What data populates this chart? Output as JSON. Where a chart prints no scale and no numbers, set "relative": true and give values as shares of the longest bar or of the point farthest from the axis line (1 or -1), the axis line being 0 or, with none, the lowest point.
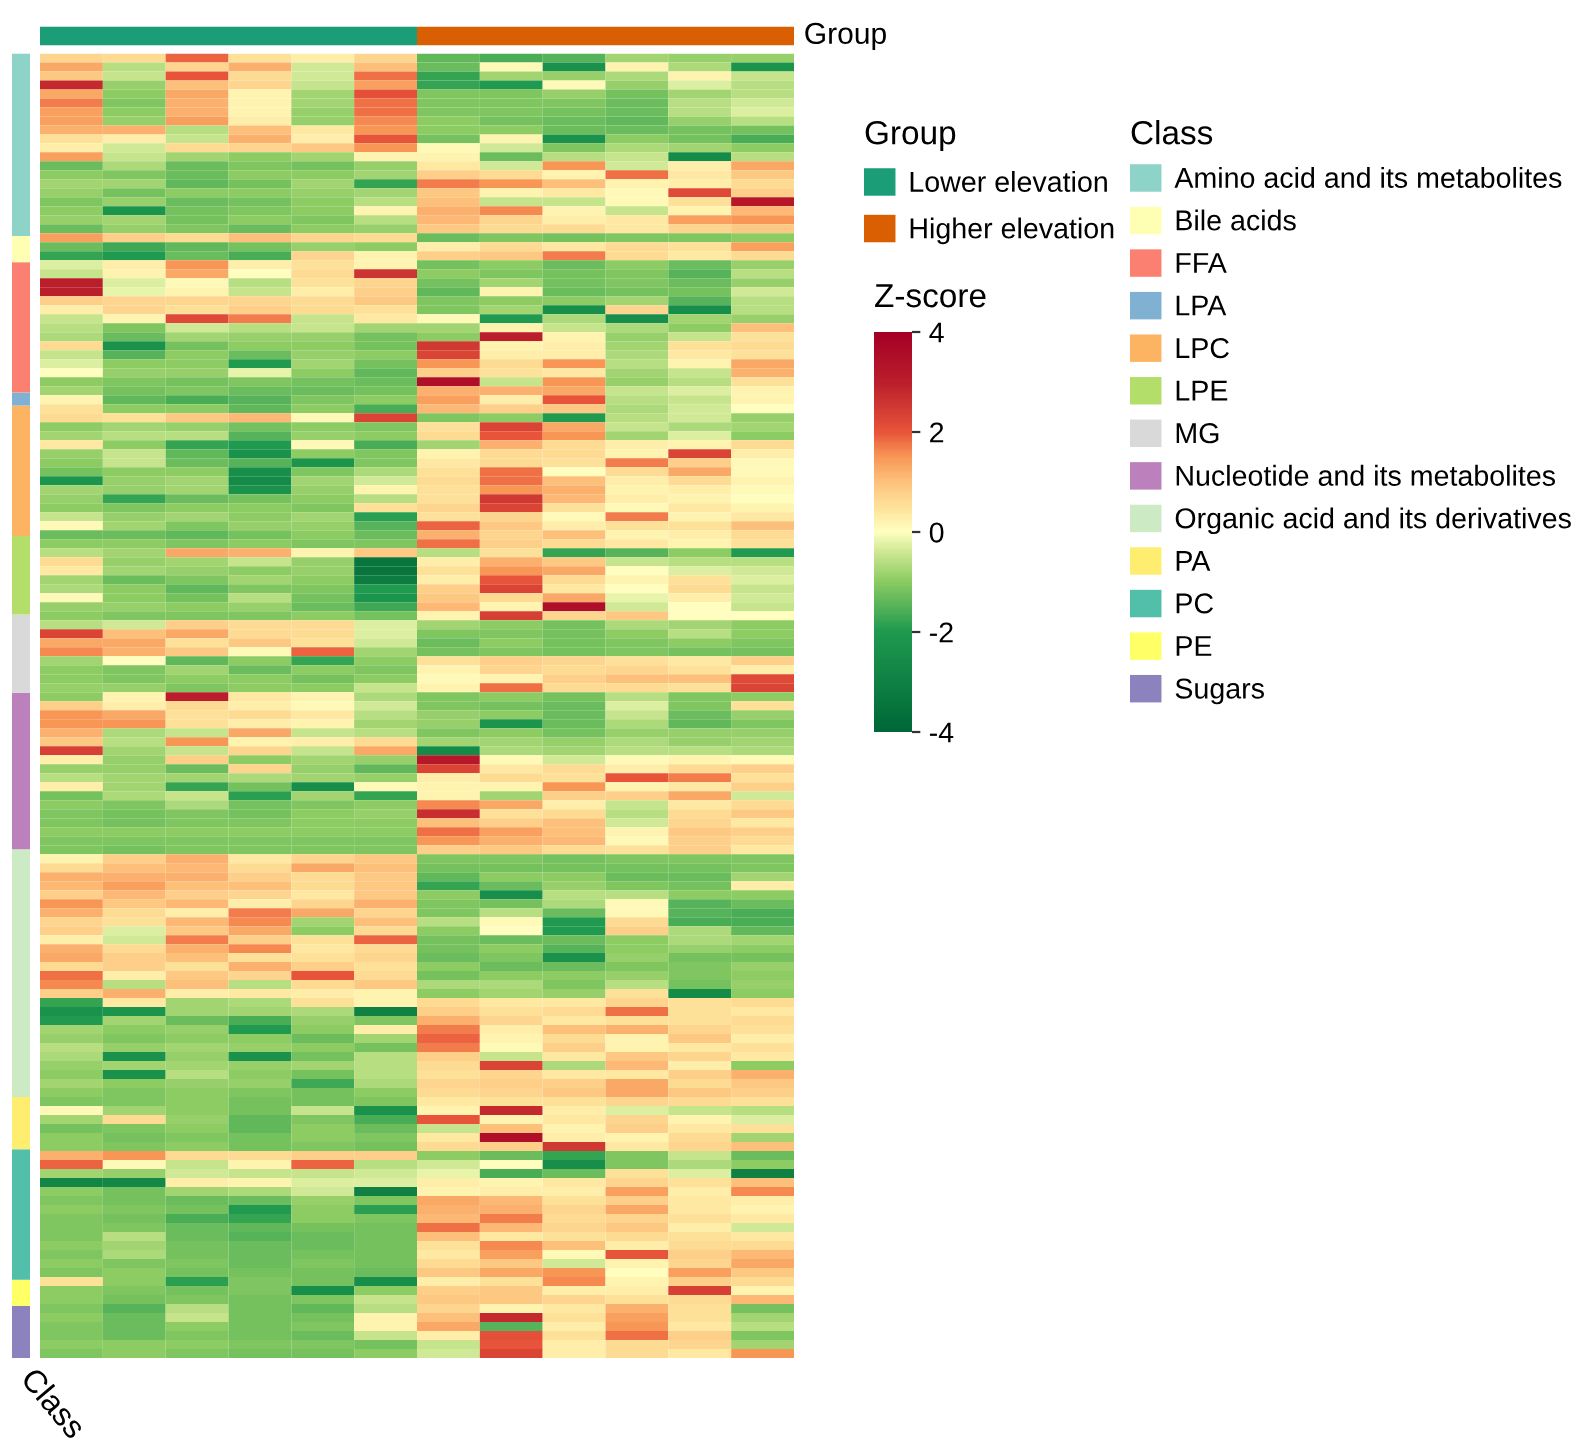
{
  "chart_data": [
    {
      "type": "bar",
      "orientation": "horizontal",
      "stacked": true,
      "relative": true,
      "categories": [
        null
      ],
      "series": [
        {
          "name": "Lower elevation",
          "color": "#1b9e77",
          "values": [
            0.5
          ]
        },
        {
          "name": "Higher elevation",
          "color": "#d95f02",
          "values": [
            0.5
          ]
        }
      ],
      "legend": "right",
      "legend_title": "Group",
      "annotations": [
        "Group"
      ]
    },
    {
      "type": "bar",
      "stacked": true,
      "relative": true,
      "categories": [
        null
      ],
      "series": [
        {
          "name": "Sugars",
          "color": "#8c82be",
          "values": [
            0.04
          ]
        },
        {
          "name": "PE",
          "color": "#ffff66",
          "values": [
            0.02
          ]
        },
        {
          "name": "PC",
          "color": "#52bfab",
          "values": [
            0.1
          ]
        },
        {
          "name": "PA",
          "color": "#ffed6f",
          "values": [
            0.04
          ]
        },
        {
          "name": "Organic acid and its derivatives",
          "color": "#ccebc5",
          "values": [
            0.19
          ]
        },
        {
          "name": "Nucleotide and its metabolites",
          "color": "#bc80bd",
          "values": [
            0.12
          ]
        },
        {
          "name": "MG",
          "color": "#d9d9d9",
          "values": [
            0.06
          ]
        },
        {
          "name": "LPE",
          "color": "#b3de69",
          "values": [
            0.06
          ]
        },
        {
          "name": "LPC",
          "color": "#fdb462",
          "values": [
            0.1
          ]
        },
        {
          "name": "LPA",
          "color": "#80b1d3",
          "values": [
            0.01
          ]
        },
        {
          "name": "FFA",
          "color": "#fb8072",
          "values": [
            0.1
          ]
        },
        {
          "name": "Bile acids",
          "color": "#ffffb3",
          "values": [
            0.02
          ]
        },
        {
          "name": "Amino acid and its metabolites",
          "color": "#8dd3c7",
          "values": [
            0.14
          ]
        }
      ],
      "legend": "right",
      "legend_title": "Class",
      "annotations": [
        "Class"
      ]
    },
    {
      "type": "heatmap",
      "categories": [
        null,
        null,
        null,
        null,
        null,
        null,
        null,
        null,
        null,
        null,
        null,
        null
      ],
      "y_categories": [
        null,
        null,
        null,
        null,
        null,
        null,
        null,
        null,
        null,
        null,
        null,
        null,
        null,
        null,
        null,
        null,
        null,
        null,
        null,
        null,
        null,
        null,
        null,
        null,
        null,
        null,
        null,
        null,
        null,
        null,
        null,
        null,
        null,
        null,
        null,
        null,
        null,
        null,
        null,
        null,
        null,
        null,
        null,
        null,
        null,
        null,
        null,
        null,
        null,
        null,
        null,
        null,
        null,
        null,
        null,
        null,
        null,
        null,
        null,
        null,
        null,
        null,
        null,
        null,
        null,
        null,
        null,
        null,
        null,
        null,
        null,
        null,
        null,
        null,
        null,
        null,
        null,
        null,
        null,
        null,
        null,
        null,
        null,
        null,
        null,
        null,
        null,
        null,
        null,
        null,
        null,
        null,
        null,
        null,
        null,
        null,
        null,
        null,
        null,
        null,
        null,
        null,
        null,
        null,
        null,
        null,
        null,
        null,
        null,
        null,
        null,
        null,
        null,
        null,
        null,
        null,
        null,
        null,
        null,
        null,
        null,
        null,
        null,
        null,
        null,
        null,
        null,
        null,
        null,
        null,
        null,
        null,
        null,
        null,
        null,
        null,
        null,
        null,
        null,
        null,
        null,
        null,
        null,
        null,
        null
      ],
      "cells": [
        [
          0.7,
          0.6,
          1.9,
          0.5,
          0.3,
          0.7,
          -1.4,
          -1.6,
          -1.5,
          -0.8,
          -0.9,
          -0.9
        ],
        [
          1.3,
          -0.6,
          0.7,
          1.2,
          -0.4,
          1.0,
          -1.3,
          0.1,
          -2.3,
          0.2,
          -0.7,
          -2.2
        ],
        [
          0.9,
          -0.5,
          2.0,
          0.6,
          -0.4,
          1.8,
          -1.8,
          -0.8,
          -0.9,
          -0.7,
          0.2,
          -0.5
        ],
        [
          2.8,
          -0.9,
          1.0,
          0.7,
          -0.5,
          1.4,
          -1.8,
          -2.0,
          0.1,
          -0.9,
          -0.3,
          -0.6
        ],
        [
          1.3,
          -1.0,
          1.3,
          0.2,
          -0.8,
          2.1,
          -1.1,
          -1.1,
          -0.9,
          -1.2,
          -0.8,
          -0.6
        ],
        [
          1.7,
          -1.1,
          1.2,
          0.2,
          -0.8,
          1.8,
          -1.1,
          -1.1,
          -1.1,
          -1.3,
          -0.6,
          -0.4
        ],
        [
          1.4,
          -1.0,
          1.2,
          0.2,
          -0.9,
          1.8,
          -1.1,
          -1.1,
          -1.2,
          -1.3,
          -0.6,
          -0.3
        ],
        [
          1.4,
          -0.9,
          1.4,
          0.3,
          -0.9,
          1.6,
          -1.0,
          -1.2,
          -1.3,
          -1.4,
          -0.9,
          -0.6
        ],
        [
          1.2,
          1.2,
          -0.6,
          1.0,
          0.4,
          1.5,
          -1.0,
          -1.0,
          -1.3,
          -1.3,
          -1.2,
          -1.2
        ],
        [
          0.5,
          0.3,
          -0.5,
          1.2,
          0.3,
          2.0,
          -1.2,
          0.2,
          -2.3,
          -1.0,
          -1.2,
          -1.6
        ],
        [
          0.3,
          -0.4,
          0.6,
          0.7,
          0.9,
          1.5,
          0.1,
          -0.4,
          -1.1,
          -0.7,
          -0.8,
          -1.0
        ],
        [
          1.4,
          -0.5,
          -0.8,
          -1.0,
          -0.8,
          0.2,
          0.2,
          -1.3,
          -0.6,
          -0.5,
          -2.6,
          -0.6
        ],
        [
          -1.3,
          -0.7,
          -1.3,
          -1.1,
          -1.2,
          -0.9,
          0.4,
          -0.4,
          1.5,
          -0.4,
          0.3,
          1.3
        ],
        [
          -1.0,
          -1.1,
          -1.3,
          -1.0,
          -1.0,
          -0.8,
          0.8,
          0.6,
          0.2,
          1.8,
          0.4,
          0.9
        ],
        [
          -0.8,
          -0.8,
          -1.4,
          -1.2,
          -0.8,
          -1.8,
          1.7,
          1.5,
          1.0,
          0.2,
          0.3,
          0.6
        ],
        [
          -0.9,
          -1.2,
          -1.0,
          -1.0,
          -0.9,
          -0.8,
          0.9,
          0.2,
          0.4,
          0.1,
          2.2,
          0.8
        ],
        [
          -1.1,
          -0.9,
          -1.3,
          -1.2,
          -1.0,
          -0.6,
          1.0,
          -0.5,
          -0.5,
          0.1,
          0.5,
          3.2
        ],
        [
          -1.0,
          -2.2,
          -1.2,
          -1.1,
          -1.0,
          0.2,
          1.2,
          1.6,
          0.2,
          -0.5,
          0.2,
          1.1
        ],
        [
          -0.9,
          -0.8,
          -1.2,
          -1.0,
          -1.1,
          -0.6,
          1.1,
          0.7,
          0.3,
          0.4,
          1.4,
          1.5
        ],
        [
          -1.3,
          -0.9,
          -1.1,
          -1.3,
          -1.0,
          -0.9,
          0.9,
          0.6,
          0.6,
          0.4,
          0.7,
          0.9
        ],
        [
          1.4,
          0.8,
          0.6,
          1.0,
          0.7,
          0.6,
          -1.3,
          -1.1,
          -1.2,
          -1.1,
          -1.1,
          -1.0
        ],
        [
          -1.3,
          -1.7,
          -1.4,
          -1.2,
          -0.9,
          -1.0,
          0.3,
          0.6,
          0.4,
          0.6,
          0.5,
          1.4
        ],
        [
          -1.8,
          -2.0,
          -1.3,
          -1.6,
          0.7,
          0.2,
          0.8,
          0.9,
          1.7,
          0.6,
          0.4,
          0.6
        ],
        [
          -0.3,
          0.3,
          1.5,
          0.3,
          0.5,
          0.2,
          -1.2,
          -1.0,
          -1.3,
          -1.0,
          -1.3,
          -0.9
        ],
        [
          -0.5,
          0.2,
          1.3,
          0.0,
          0.6,
          2.6,
          -1.0,
          -1.1,
          -1.2,
          -1.1,
          -1.5,
          -0.6
        ],
        [
          3.0,
          -0.3,
          0.1,
          -0.6,
          0.5,
          0.7,
          -1.2,
          -0.8,
          -1.2,
          -1.1,
          -1.3,
          -0.9
        ],
        [
          3.0,
          -0.2,
          0.2,
          -0.5,
          0.3,
          0.8,
          -1.4,
          0.2,
          -1.3,
          -1.2,
          -1.2,
          -0.4
        ],
        [
          0.8,
          0.7,
          0.7,
          0.7,
          0.6,
          0.9,
          -1.1,
          -1.0,
          -1.0,
          -0.8,
          -1.5,
          -0.6
        ],
        [
          0.3,
          0.7,
          0.5,
          0.8,
          0.6,
          0.5,
          -1.1,
          -0.8,
          -2.5,
          0.7,
          -2.5,
          -0.6
        ],
        [
          -0.5,
          0.2,
          2.2,
          1.7,
          -0.5,
          0.4,
          0.1,
          -2.0,
          -0.7,
          -2.5,
          -0.8,
          -0.9
        ],
        [
          -0.6,
          -1.1,
          -0.4,
          -0.6,
          -0.5,
          -0.8,
          -0.8,
          0.2,
          -0.5,
          -0.7,
          -1.0,
          1.0
        ],
        [
          -0.7,
          -1.3,
          -0.8,
          -0.9,
          -0.9,
          -1.2,
          -1.0,
          3.0,
          0.2,
          -0.9,
          -0.5,
          0.5
        ],
        [
          0.6,
          -2.3,
          -1.2,
          -1.0,
          -1.0,
          -1.2,
          2.5,
          0.2,
          0.3,
          -0.8,
          0.5,
          0.6
        ],
        [
          -0.5,
          -1.5,
          -1.0,
          -1.3,
          -0.9,
          -1.0,
          2.3,
          0.3,
          0.3,
          -0.7,
          0.4,
          0.5
        ],
        [
          -0.3,
          -1.0,
          -1.0,
          -2.0,
          -0.8,
          -1.2,
          1.5,
          0.6,
          1.5,
          -0.6,
          0.2,
          1.3
        ],
        [
          0.0,
          -0.9,
          -0.9,
          -0.2,
          -1.0,
          -1.4,
          0.8,
          0.5,
          0.4,
          -0.8,
          -0.5,
          1.2
        ],
        [
          -1.0,
          -1.1,
          -1.2,
          -1.1,
          -1.2,
          -1.3,
          3.5,
          -0.5,
          1.5,
          -0.9,
          -0.6,
          0.5
        ],
        [
          -0.8,
          -1.2,
          -1.1,
          -1.3,
          -1.3,
          -1.2,
          1.2,
          1.2,
          1.3,
          -0.5,
          -0.3,
          0.2
        ],
        [
          0.2,
          -1.4,
          -1.6,
          -1.5,
          -1.1,
          -1.0,
          1.4,
          0.3,
          2.0,
          -0.6,
          -0.5,
          0.2
        ],
        [
          0.5,
          -1.0,
          -1.0,
          -1.4,
          -1.0,
          -1.6,
          1.1,
          0.8,
          0.9,
          -0.7,
          -0.4,
          0.0
        ],
        [
          0.6,
          0.5,
          0.9,
          1.1,
          0.1,
          2.3,
          -1.1,
          -1.0,
          -2.0,
          -0.6,
          -0.4,
          -0.9
        ],
        [
          -1.0,
          -0.8,
          -0.9,
          -1.2,
          -1.0,
          -1.1,
          0.5,
          2.3,
          1.3,
          -0.5,
          -0.7,
          -0.8
        ],
        [
          -0.8,
          -0.6,
          -0.6,
          -1.5,
          -0.9,
          -1.0,
          0.6,
          2.0,
          1.5,
          -0.8,
          -0.3,
          -1.0
        ],
        [
          0.4,
          -1.0,
          -1.8,
          -2.0,
          0.1,
          -1.6,
          -0.8,
          1.2,
          0.6,
          0.3,
          0.2,
          0.6
        ],
        [
          -0.9,
          -0.5,
          -1.4,
          -2.3,
          -1.0,
          -1.1,
          0.2,
          0.6,
          0.6,
          0.2,
          2.3,
          0.3
        ],
        [
          -1.0,
          -0.5,
          -1.3,
          -1.5,
          -2.2,
          -1.1,
          0.4,
          0.6,
          0.5,
          1.7,
          0.8,
          0.1
        ],
        [
          -1.2,
          -1.0,
          -1.0,
          -2.5,
          -1.1,
          -0.7,
          0.5,
          1.8,
          0.0,
          0.6,
          1.3,
          0.1
        ],
        [
          -2.2,
          -0.9,
          -0.8,
          -2.6,
          -0.8,
          -0.4,
          0.6,
          1.8,
          1.0,
          0.3,
          0.6,
          0.2
        ],
        [
          -0.8,
          -0.9,
          -0.8,
          -2.3,
          -0.9,
          0.2,
          0.5,
          1.5,
          1.2,
          0.2,
          0.3,
          0.1
        ],
        [
          -0.9,
          -1.8,
          -1.3,
          -1.2,
          -1.0,
          -0.6,
          0.5,
          2.5,
          1.1,
          0.3,
          0.2,
          0.0
        ],
        [
          -1.0,
          -1.1,
          -1.0,
          -1.0,
          -1.1,
          0.5,
          0.7,
          2.3,
          0.5,
          0.1,
          0.4,
          0.2
        ],
        [
          -0.5,
          -0.9,
          -0.8,
          -1.0,
          -0.8,
          -1.9,
          0.5,
          0.7,
          0.1,
          1.7,
          0.2,
          0.4
        ],
        [
          0.1,
          -0.8,
          -1.1,
          -0.9,
          -0.9,
          -1.5,
          1.9,
          0.9,
          0.3,
          0.5,
          0.5,
          1.0
        ],
        [
          -1.3,
          -1.3,
          -1.4,
          -1.2,
          -1.0,
          -1.3,
          1.2,
          0.7,
          1.0,
          0.2,
          0.3,
          0.6
        ],
        [
          -1.0,
          -1.0,
          -1.1,
          -1.0,
          -1.1,
          -1.1,
          1.8,
          0.8,
          0.6,
          0.4,
          0.2,
          0.5
        ],
        [
          -0.6,
          -0.8,
          1.3,
          1.2,
          0.2,
          0.9,
          -0.6,
          0.5,
          -1.8,
          -1.5,
          -1.0,
          -2.0
        ],
        [
          0.6,
          -0.9,
          -0.8,
          -0.5,
          -0.9,
          -3.5,
          0.3,
          1.2,
          0.9,
          -0.5,
          -0.6,
          -0.6
        ],
        [
          0.4,
          -0.8,
          -0.9,
          -1.0,
          -0.9,
          -3.5,
          0.5,
          1.5,
          1.3,
          0.0,
          -0.3,
          -0.4
        ],
        [
          -0.8,
          -1.3,
          -1.1,
          -0.8,
          -1.0,
          -3.2,
          0.3,
          2.0,
          0.6,
          0.2,
          0.5,
          -0.3
        ],
        [
          -0.7,
          -1.0,
          -1.4,
          -1.1,
          -1.1,
          -2.0,
          0.8,
          2.3,
          0.4,
          0.0,
          0.6,
          -0.5
        ],
        [
          0.1,
          -1.0,
          -1.2,
          -0.6,
          -1.2,
          -2.2,
          0.9,
          0.6,
          1.3,
          -0.2,
          0.3,
          -0.4
        ],
        [
          -0.9,
          -0.9,
          -1.0,
          -0.9,
          -1.3,
          -1.7,
          1.1,
          0.2,
          3.5,
          -0.4,
          0.0,
          -0.5
        ],
        [
          -1.0,
          -1.1,
          -1.1,
          -1.1,
          -1.0,
          -1.2,
          0.2,
          2.4,
          0.7,
          0.9,
          0.0,
          0.0
        ],
        [
          -0.6,
          -0.4,
          0.8,
          0.6,
          0.6,
          -0.3,
          -0.8,
          -1.0,
          -1.2,
          -0.7,
          -0.8,
          -1.0
        ],
        [
          2.3,
          1.0,
          1.3,
          0.6,
          0.6,
          -0.3,
          -1.1,
          -1.1,
          -1.2,
          -1.0,
          -0.6,
          -1.0
        ],
        [
          1.3,
          1.3,
          0.5,
          0.9,
          0.5,
          -0.4,
          -1.3,
          -1.0,
          -1.2,
          -1.1,
          -1.0,
          -1.1
        ],
        [
          1.6,
          1.2,
          0.9,
          0.1,
          1.9,
          -0.8,
          -1.2,
          -1.1,
          -1.2,
          -1.1,
          -1.2,
          -1.2
        ],
        [
          -0.8,
          0.0,
          -1.4,
          -1.0,
          -1.8,
          -1.0,
          0.5,
          0.8,
          0.7,
          0.5,
          0.4,
          0.8
        ],
        [
          -1.0,
          -1.1,
          -0.8,
          -1.3,
          -1.0,
          -1.1,
          0.2,
          0.7,
          0.6,
          0.7,
          0.5,
          0.3
        ],
        [
          -1.0,
          -1.1,
          -1.0,
          -1.0,
          -1.2,
          -1.0,
          0.1,
          0.2,
          0.8,
          1.0,
          1.0,
          2.2
        ],
        [
          -0.9,
          -0.9,
          -1.1,
          -1.0,
          -1.0,
          -0.5,
          0.2,
          1.8,
          0.6,
          0.6,
          0.5,
          2.3
        ],
        [
          -1.0,
          0.2,
          3.0,
          0.4,
          0.2,
          -0.7,
          -1.1,
          -1.0,
          -1.2,
          -0.6,
          -1.1,
          -1.0
        ],
        [
          0.8,
          0.3,
          0.6,
          0.3,
          0.1,
          -0.4,
          -1.1,
          -1.2,
          -1.3,
          -0.3,
          -1.1,
          0.5
        ],
        [
          1.5,
          1.3,
          0.5,
          0.6,
          0.4,
          -0.6,
          -0.9,
          -1.0,
          -1.3,
          -0.5,
          -1.3,
          -0.9
        ],
        [
          1.5,
          1.5,
          0.5,
          0.3,
          0.2,
          -0.8,
          -0.9,
          -2.2,
          -1.3,
          -0.7,
          -1.4,
          -1.1
        ],
        [
          1.2,
          -0.7,
          -0.5,
          1.3,
          -0.5,
          -0.6,
          -1.1,
          -1.0,
          -1.2,
          -0.9,
          -0.9,
          -0.9
        ],
        [
          0.9,
          -0.6,
          1.5,
          0.2,
          0.3,
          0.6,
          -0.8,
          -0.8,
          -0.9,
          -0.7,
          -0.9,
          -0.8
        ],
        [
          2.4,
          -0.8,
          -0.5,
          0.7,
          -0.5,
          1.3,
          -2.6,
          -0.7,
          -0.8,
          -0.6,
          -0.6,
          -0.7
        ],
        [
          0.3,
          -0.9,
          0.8,
          -1.0,
          -0.8,
          -0.9,
          3.2,
          0.1,
          -0.4,
          0.1,
          0.2,
          0.1
        ],
        [
          -0.9,
          -0.9,
          -1.3,
          0.7,
          -0.9,
          -1.4,
          2.3,
          0.4,
          0.6,
          0.3,
          0.6,
          0.8
        ],
        [
          -0.6,
          -0.8,
          -0.8,
          -0.7,
          -0.8,
          -0.9,
          0.3,
          0.6,
          0.5,
          2.0,
          1.7,
          0.5
        ],
        [
          0.3,
          -0.8,
          -1.8,
          -1.2,
          -2.5,
          0.1,
          0.2,
          0.2,
          1.5,
          0.2,
          0.4,
          0.8
        ],
        [
          -1.2,
          -0.7,
          -0.5,
          -1.9,
          -0.8,
          -1.8,
          0.2,
          -0.8,
          0.8,
          0.8,
          1.3,
          -0.4
        ],
        [
          -1.0,
          -1.1,
          -0.7,
          -1.2,
          -1.1,
          -1.0,
          1.6,
          1.3,
          0.3,
          -0.5,
          0.4,
          0.6
        ],
        [
          -1.1,
          -1.2,
          -1.1,
          -1.2,
          -1.0,
          -0.9,
          2.7,
          0.5,
          0.6,
          -0.6,
          0.6,
          0.9
        ],
        [
          -1.1,
          -1.2,
          -1.1,
          -1.1,
          -1.0,
          -1.0,
          1.0,
          0.8,
          1.0,
          -0.4,
          0.7,
          0.4
        ],
        [
          -1.0,
          -1.0,
          -1.0,
          -1.0,
          -1.0,
          -1.0,
          1.8,
          1.4,
          1.0,
          0.2,
          0.9,
          0.8
        ],
        [
          -1.1,
          -1.1,
          -1.1,
          -1.1,
          -1.1,
          -1.1,
          1.5,
          1.2,
          1.1,
          0.1,
          0.8,
          0.6
        ],
        [
          -1.1,
          -1.2,
          -1.1,
          -1.1,
          -1.1,
          -1.1,
          0.8,
          0.9,
          0.6,
          0.5,
          0.8,
          0.4
        ],
        [
          0.2,
          0.8,
          1.2,
          0.4,
          0.7,
          0.9,
          -1.1,
          -1.1,
          -1.2,
          -1.1,
          -1.1,
          -1.1
        ],
        [
          0.6,
          1.0,
          1.1,
          0.6,
          1.3,
          1.0,
          -1.2,
          -1.2,
          -1.2,
          -1.2,
          -1.2,
          -1.1
        ],
        [
          1.2,
          1.2,
          1.2,
          0.8,
          0.6,
          0.9,
          -1.4,
          -1.0,
          -1.0,
          -1.3,
          -1.3,
          -0.8
        ],
        [
          1.1,
          1.4,
          1.0,
          1.0,
          0.6,
          0.9,
          -1.8,
          -1.3,
          -0.9,
          -1.1,
          -1.2,
          0.3
        ],
        [
          0.8,
          1.1,
          0.8,
          0.7,
          0.4,
          0.9,
          -1.0,
          -2.5,
          -0.6,
          -0.6,
          -1.0,
          -1.0
        ],
        [
          1.5,
          0.9,
          1.1,
          0.3,
          0.7,
          1.2,
          -1.1,
          -1.2,
          -0.7,
          0.1,
          -1.5,
          -1.3
        ],
        [
          1.2,
          0.6,
          0.3,
          1.7,
          1.3,
          0.7,
          -1.1,
          -0.6,
          -1.3,
          0.1,
          -1.5,
          -1.6
        ],
        [
          0.7,
          0.5,
          1.1,
          1.6,
          -0.8,
          1.0,
          -0.6,
          0.1,
          -2.0,
          0.6,
          -1.6,
          -1.6
        ],
        [
          0.8,
          -0.3,
          0.9,
          1.3,
          -1.0,
          0.6,
          -1.0,
          0.0,
          -2.0,
          0.8,
          -0.7,
          -1.4
        ],
        [
          0.3,
          -0.4,
          1.7,
          0.8,
          0.5,
          1.9,
          -1.2,
          -1.3,
          -1.3,
          -1.0,
          -0.7,
          -0.8
        ],
        [
          1.2,
          0.6,
          1.2,
          1.6,
          0.4,
          0.6,
          -1.2,
          -1.0,
          -1.5,
          -1.0,
          -0.9,
          -1.0
        ],
        [
          1.3,
          0.8,
          1.0,
          0.5,
          0.5,
          0.7,
          -1.3,
          -1.1,
          -2.3,
          -0.9,
          -1.2,
          -1.2
        ],
        [
          0.6,
          0.8,
          0.5,
          1.2,
          0.8,
          0.5,
          -1.0,
          -1.3,
          -1.3,
          -1.1,
          -1.1,
          -0.9
        ],
        [
          1.8,
          0.3,
          0.9,
          0.7,
          2.0,
          0.6,
          -1.2,
          -1.0,
          -1.0,
          -0.9,
          -1.1,
          -1.0
        ],
        [
          1.6,
          -0.6,
          1.0,
          -0.6,
          0.6,
          0.9,
          -0.7,
          -0.7,
          -1.1,
          -0.6,
          -1.2,
          -0.9
        ],
        [
          0.8,
          1.2,
          0.3,
          0.4,
          0.3,
          0.2,
          -1.0,
          -0.8,
          -0.9,
          0.5,
          -2.6,
          -1.0
        ],
        [
          -1.8,
          0.4,
          -0.8,
          -0.7,
          0.5,
          0.2,
          0.6,
          0.4,
          0.4,
          0.7,
          0.5,
          0.6
        ],
        [
          -2.3,
          -2.2,
          -0.8,
          -0.8,
          -0.7,
          -3.0,
          0.8,
          0.5,
          0.6,
          1.8,
          0.5,
          0.4
        ],
        [
          -2.0,
          -0.8,
          -1.3,
          -1.6,
          -0.9,
          -1.1,
          1.2,
          0.7,
          0.4,
          0.5,
          0.5,
          0.6
        ],
        [
          -0.8,
          -1.0,
          -0.9,
          -2.0,
          -1.0,
          0.3,
          1.7,
          0.3,
          1.0,
          1.2,
          0.7,
          0.5
        ],
        [
          -0.9,
          -1.1,
          -1.0,
          -1.0,
          -1.3,
          -0.8,
          1.9,
          0.2,
          0.6,
          0.2,
          0.9,
          0.3
        ],
        [
          -0.6,
          -0.9,
          -0.8,
          -0.9,
          -1.0,
          -1.2,
          1.7,
          0.1,
          0.8,
          0.2,
          0.4,
          0.5
        ],
        [
          -0.7,
          -2.3,
          -0.9,
          -2.3,
          -1.2,
          -0.6,
          0.8,
          -0.5,
          0.4,
          0.9,
          0.7,
          0.4
        ],
        [
          -0.9,
          -0.8,
          -0.8,
          -0.9,
          -0.8,
          -0.6,
          0.6,
          2.3,
          -0.7,
          1.1,
          0.3,
          -1.0
        ],
        [
          -1.0,
          -2.3,
          -0.6,
          -1.0,
          -1.2,
          -0.6,
          0.5,
          0.7,
          0.4,
          0.4,
          0.8,
          1.2
        ],
        [
          -0.8,
          -1.0,
          -0.9,
          -0.9,
          -1.7,
          -0.7,
          0.7,
          0.8,
          0.8,
          1.3,
          0.6,
          0.9
        ],
        [
          -1.0,
          -1.1,
          -1.0,
          -1.1,
          -1.2,
          -1.0,
          0.6,
          0.7,
          0.9,
          1.3,
          0.9,
          0.8
        ],
        [
          -1.1,
          -1.1,
          -1.0,
          -1.2,
          -1.2,
          -1.1,
          0.4,
          0.5,
          0.5,
          0.7,
          0.6,
          0.5
        ],
        [
          0.1,
          -0.8,
          -1.0,
          -1.2,
          -0.5,
          -2.3,
          0.2,
          2.8,
          0.3,
          -0.3,
          -0.5,
          -0.6
        ],
        [
          -0.8,
          0.6,
          -0.9,
          -1.4,
          -1.1,
          -1.6,
          2.0,
          0.2,
          0.4,
          0.7,
          0.2,
          -0.3
        ],
        [
          -1.2,
          -1.1,
          -1.0,
          -1.4,
          -1.0,
          -1.3,
          -0.5,
          1.0,
          0.2,
          0.8,
          0.4,
          0.5
        ],
        [
          -1.0,
          -1.2,
          -1.1,
          -1.2,
          -1.0,
          -1.1,
          0.4,
          3.5,
          0.3,
          0.2,
          0.6,
          -0.8
        ],
        [
          -1.0,
          -1.1,
          -1.0,
          -1.2,
          -1.1,
          -1.2,
          0.6,
          0.8,
          2.5,
          0.4,
          0.7,
          1.0
        ],
        [
          1.2,
          1.5,
          0.6,
          0.6,
          0.8,
          0.8,
          -1.0,
          -1.3,
          -1.8,
          -1.1,
          -0.5,
          -1.3
        ],
        [
          1.9,
          0.1,
          -0.5,
          0.2,
          1.9,
          -0.6,
          -0.4,
          0.0,
          -2.5,
          -1.1,
          -0.7,
          -1.0
        ],
        [
          -0.8,
          -0.9,
          -0.4,
          -0.5,
          -0.5,
          -0.4,
          -0.2,
          -1.6,
          -1.3,
          0.5,
          -0.3,
          -3.0
        ],
        [
          -2.8,
          -2.7,
          0.3,
          0.2,
          -0.3,
          -0.3,
          0.3,
          0.2,
          0.4,
          0.7,
          0.5,
          1.0
        ],
        [
          -1.0,
          -1.2,
          -0.8,
          -0.7,
          -0.4,
          -3.0,
          0.2,
          0.3,
          0.3,
          1.4,
          0.3,
          1.6
        ],
        [
          -1.1,
          -1.2,
          -1.3,
          -1.3,
          -0.9,
          -1.1,
          1.3,
          1.1,
          0.5,
          0.8,
          0.4,
          0.3
        ],
        [
          -1.0,
          -1.1,
          -1.2,
          -2.0,
          -1.0,
          -1.9,
          1.2,
          1.2,
          0.7,
          1.3,
          0.4,
          0.2
        ],
        [
          -1.1,
          -1.2,
          -1.6,
          -1.8,
          -1.0,
          -1.1,
          1.1,
          1.7,
          0.6,
          0.7,
          0.5,
          0.4
        ],
        [
          -1.1,
          -1.1,
          -1.3,
          -1.4,
          -1.2,
          -1.2,
          1.8,
          1.1,
          0.7,
          0.9,
          0.3,
          -0.4
        ],
        [
          -1.1,
          -0.6,
          -1.3,
          -1.5,
          -1.3,
          -1.2,
          1.0,
          0.4,
          0.5,
          0.6,
          0.5,
          0.4
        ],
        [
          -1.0,
          -0.8,
          -1.2,
          -1.3,
          -1.3,
          -1.2,
          0.5,
          1.6,
          1.0,
          0.3,
          0.6,
          0.6
        ],
        [
          -1.1,
          -0.7,
          -1.2,
          -1.3,
          -1.2,
          -1.2,
          0.4,
          1.4,
          0.1,
          2.0,
          0.8,
          1.1
        ],
        [
          -1.0,
          -1.1,
          -1.1,
          -1.3,
          -1.1,
          -1.2,
          0.6,
          0.9,
          -0.4,
          0.2,
          0.7,
          1.3
        ],
        [
          -1.1,
          -1.0,
          -1.2,
          -1.2,
          -1.2,
          -1.3,
          0.9,
          1.3,
          1.5,
          0.0,
          1.4,
          0.9
        ],
        [
          0.5,
          -1.0,
          -1.9,
          -1.1,
          -1.2,
          -2.5,
          0.3,
          0.5,
          1.6,
          0.2,
          0.8,
          0.6
        ],
        [
          -1.0,
          -1.1,
          -1.2,
          -1.1,
          -2.5,
          -1.0,
          0.8,
          0.9,
          0.3,
          0.3,
          2.4,
          0.2
        ],
        [
          -1.0,
          -1.2,
          -1.1,
          -1.2,
          -1.1,
          -0.5,
          0.9,
          0.9,
          0.7,
          0.5,
          0.6,
          1.1
        ],
        [
          -1.1,
          -1.5,
          -0.6,
          -1.2,
          -1.4,
          -0.6,
          0.7,
          0.2,
          0.4,
          1.2,
          0.5,
          -1.2
        ],
        [
          -1.0,
          -1.3,
          -0.5,
          -1.2,
          -1.2,
          0.2,
          1.0,
          2.8,
          0.5,
          1.4,
          0.5,
          -0.8
        ],
        [
          -1.1,
          -1.3,
          -1.0,
          -1.2,
          -1.1,
          0.2,
          1.3,
          -1.5,
          0.3,
          1.5,
          0.4,
          -0.6
        ],
        [
          -1.1,
          -1.3,
          -1.1,
          -1.2,
          -1.3,
          -0.5,
          0.3,
          2.1,
          0.5,
          1.8,
          0.8,
          -1.1
        ],
        [
          -1.0,
          -1.0,
          -1.0,
          -1.1,
          -1.1,
          -1.2,
          -0.5,
          2.0,
          0.3,
          0.6,
          0.7,
          -0.8
        ],
        [
          -1.1,
          -1.0,
          -1.1,
          -1.2,
          -1.2,
          -1.0,
          -0.4,
          2.3,
          0.3,
          0.6,
          0.4,
          1.5
        ]
      ],
      "clim": [
        -4,
        4
      ],
      "cticks": [
        -4,
        -2,
        0,
        2,
        4
      ],
      "clabel": "Z-score"
    }
  ]
}
